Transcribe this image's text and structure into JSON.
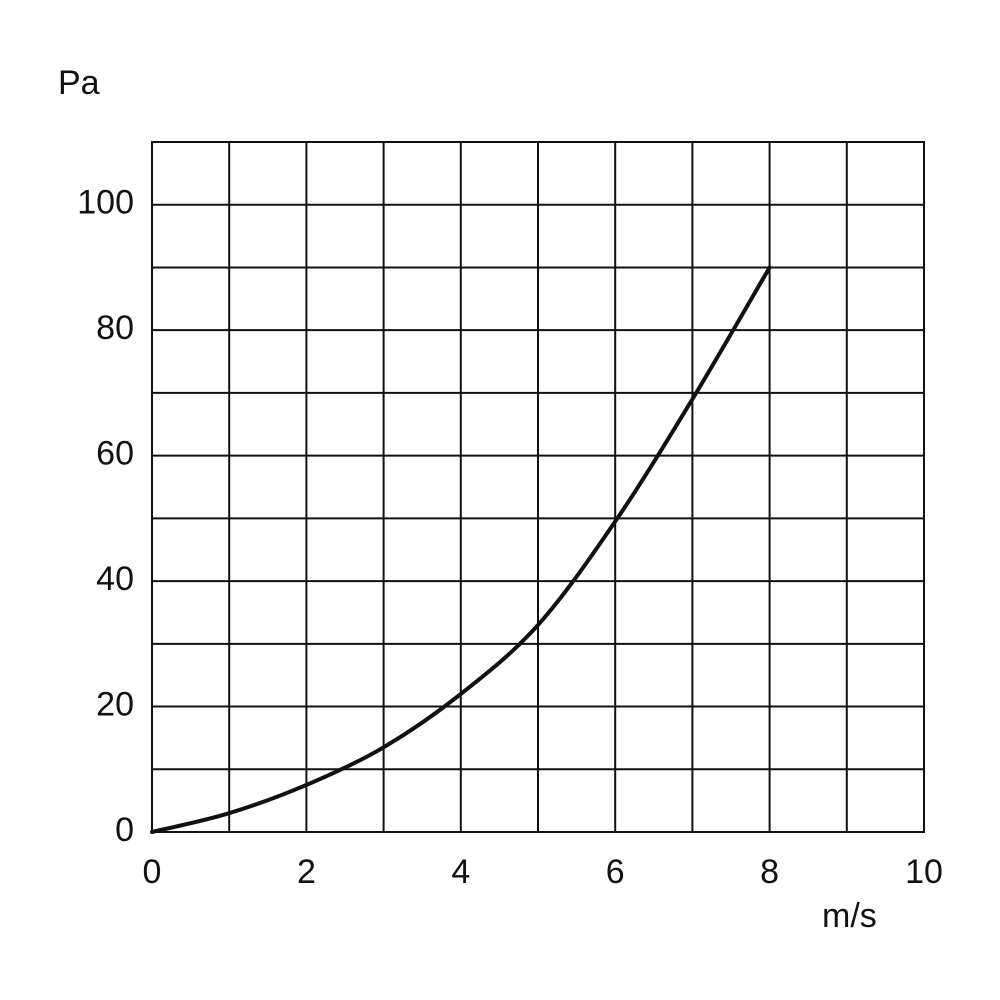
{
  "chart_data": {
    "type": "line",
    "ylabel": "Pa",
    "xlabel": "m/s",
    "x": [
      0,
      1,
      2,
      3,
      4,
      5,
      6,
      7,
      8
    ],
    "series": [
      {
        "color": "#111111",
        "values": [
          0,
          3,
          7.5,
          13.5,
          22,
          33,
          49.5,
          69,
          90
        ]
      }
    ],
    "xlim": [
      0,
      10
    ],
    "ylim": [
      0,
      110
    ],
    "xticks": [
      0,
      2,
      4,
      6,
      8,
      10
    ],
    "yticks": [
      0,
      20,
      40,
      60,
      80,
      100
    ],
    "xminorticks": [
      1,
      3,
      5,
      7,
      9
    ],
    "yminorticks": [
      10,
      30,
      50,
      70,
      90,
      110
    ],
    "grid": true
  }
}
